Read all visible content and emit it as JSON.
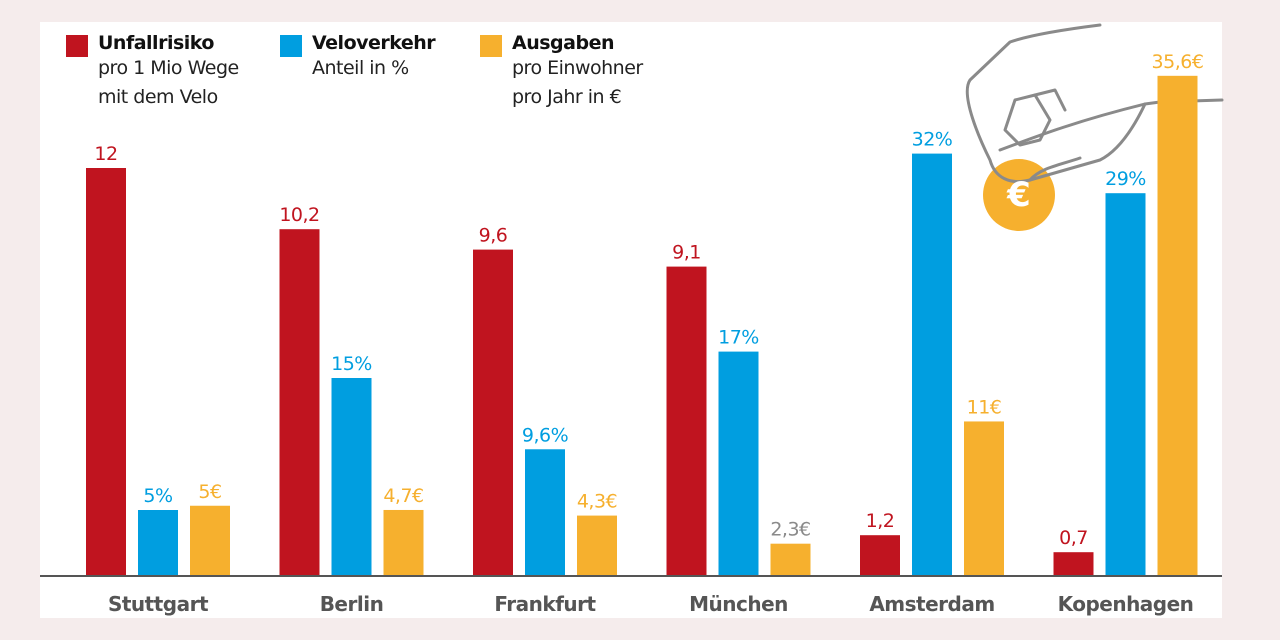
{
  "legend": [
    {
      "title": "Unfallrisiko",
      "subtitle": [
        "pro 1 Mio Wege",
        "mit dem Velo"
      ],
      "color": "#c0141f"
    },
    {
      "title": "Veloverkehr",
      "subtitle": [
        "Anteil in %"
      ],
      "color": "#009ee0"
    },
    {
      "title": "Ausgaben",
      "subtitle": [
        "pro Einwohner",
        "pro Jahr in €"
      ],
      "color": "#f6b02e"
    }
  ],
  "illustration": {
    "icon": "hand-inserting-euro-coin-icon",
    "coin_symbol": "€",
    "coin_color": "#f6b02e"
  },
  "chart_data": {
    "type": "bar",
    "categories": [
      "Stuttgart",
      "Berlin",
      "Frankfurt",
      "München",
      "Amsterdam",
      "Kopenhagen"
    ],
    "series": [
      {
        "name": "Unfallrisiko",
        "color": "#c0141f",
        "values": [
          12,
          10.2,
          9.6,
          9.1,
          1.2,
          0.7
        ],
        "labels": [
          "12",
          "10,2",
          "9,6",
          "9,1",
          "1,2",
          "0,7"
        ]
      },
      {
        "name": "Veloverkehr",
        "color": "#009ee0",
        "values": [
          5,
          15,
          9.6,
          17,
          32,
          29
        ],
        "labels": [
          "5%",
          "15%",
          "9,6%",
          "17%",
          "32%",
          "29%"
        ]
      },
      {
        "name": "Ausgaben",
        "color": "#f6b02e",
        "values": [
          5,
          4.7,
          4.3,
          2.3,
          11,
          35.6
        ],
        "labels": [
          "5€",
          "4,7€",
          "4,3€",
          "2,3€",
          "11€",
          "35,6€"
        ],
        "label_colors": [
          null,
          null,
          null,
          "#8a8a8a",
          null,
          null
        ]
      }
    ],
    "legend_position": "top-left",
    "grid": false,
    "category_label_color": "#555555"
  }
}
